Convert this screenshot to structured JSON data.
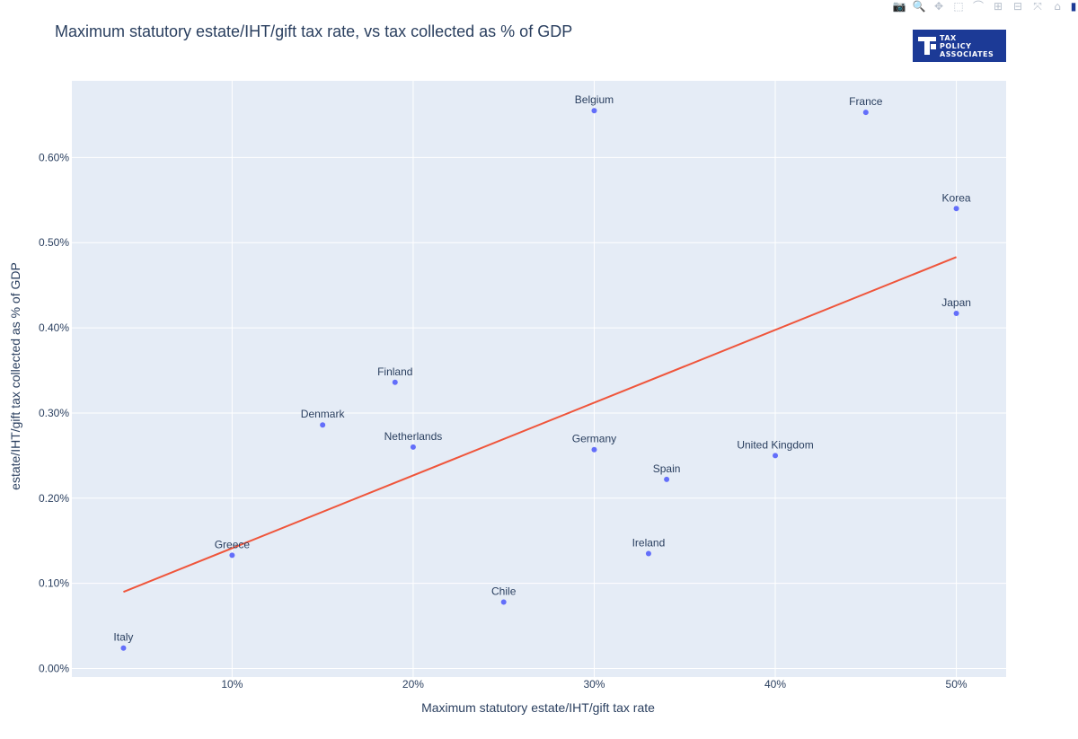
{
  "modebar": {
    "icons": [
      "camera-icon",
      "zoom-icon",
      "pan-icon",
      "box-select-icon",
      "lasso-icon",
      "zoom-in-icon",
      "zoom-out-icon",
      "autoscale-icon",
      "reset-axes-icon",
      "plotly-logo-icon"
    ],
    "glyphs": [
      "📷",
      "🔍",
      "✥",
      "⬚",
      "⌒",
      "⊞",
      "⊟",
      "⤧",
      "⌂",
      "▮"
    ]
  },
  "logo": {
    "lines": [
      "TAX",
      "POLICY",
      "ASSOCIATES"
    ]
  },
  "chart_data": {
    "type": "scatter",
    "title": "Maximum statutory estate/IHT/gift tax rate, vs tax collected as % of GDP",
    "xlabel": "Maximum statutory estate/IHT/gift tax rate",
    "ylabel": "estate/IHT/gift tax collected as % of GDP",
    "xlim": [
      0.0115,
      0.5275
    ],
    "ylim": [
      -0.0001,
      0.0069
    ],
    "x_ticks": [
      0.1,
      0.2,
      0.3,
      0.4,
      0.5
    ],
    "x_tick_labels": [
      "10%",
      "20%",
      "30%",
      "40%",
      "50%"
    ],
    "y_ticks": [
      0.0,
      0.001,
      0.002,
      0.003,
      0.004,
      0.005,
      0.006
    ],
    "y_tick_labels": [
      "0.00%",
      "0.10%",
      "0.20%",
      "0.30%",
      "0.40%",
      "0.50%",
      "0.60%"
    ],
    "grid": true,
    "colors": {
      "marker": "#636efa",
      "trendline": "#ef553b",
      "plot_bg": "#e5ecf6",
      "grid": "#ffffff",
      "text": "#2a3f5f"
    },
    "points": [
      {
        "label": "Belgium",
        "x": 0.3,
        "y": 0.00655
      },
      {
        "label": "France",
        "x": 0.45,
        "y": 0.00653
      },
      {
        "label": "Korea",
        "x": 0.5,
        "y": 0.0054
      },
      {
        "label": "Japan",
        "x": 0.5,
        "y": 0.00417
      },
      {
        "label": "Finland",
        "x": 0.19,
        "y": 0.00336
      },
      {
        "label": "Denmark",
        "x": 0.15,
        "y": 0.00286
      },
      {
        "label": "Netherlands",
        "x": 0.2,
        "y": 0.0026
      },
      {
        "label": "Germany",
        "x": 0.3,
        "y": 0.00257
      },
      {
        "label": "United Kingdom",
        "x": 0.4,
        "y": 0.0025
      },
      {
        "label": "Spain",
        "x": 0.34,
        "y": 0.00222
      },
      {
        "label": "Ireland",
        "x": 0.33,
        "y": 0.00135
      },
      {
        "label": "Greece",
        "x": 0.1,
        "y": 0.00133
      },
      {
        "label": "Chile",
        "x": 0.25,
        "y": 0.00078
      },
      {
        "label": "Italy",
        "x": 0.04,
        "y": 0.00024
      }
    ],
    "trendline": {
      "x": [
        0.04,
        0.5
      ],
      "y": [
        0.0009,
        0.00483
      ]
    }
  }
}
